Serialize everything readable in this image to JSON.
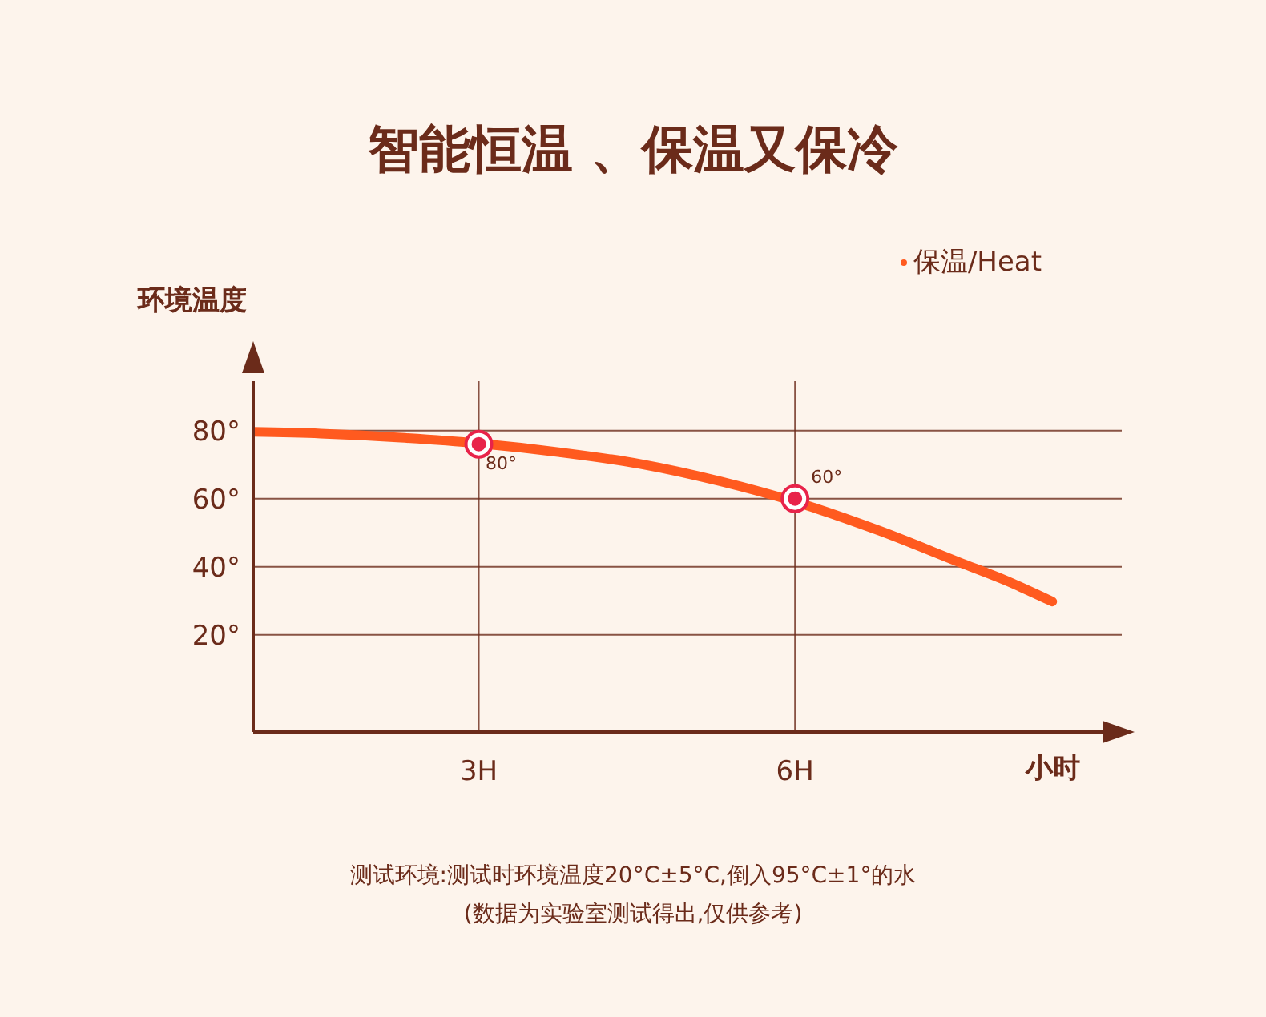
{
  "chart_data": {
    "type": "line",
    "title": "智能恒温 、保温又保冷",
    "ylabel": "环境温度",
    "xlabel": "小时",
    "series": [
      {
        "name": "保温/Heat",
        "color": "#ff5a1f",
        "marker": "none",
        "x": [
          0.86,
          1.5,
          2.26,
          3,
          3.77,
          4.53,
          5.29,
          6,
          6.8,
          7.56,
          8.02,
          8.44
        ],
        "values": [
          79.6,
          79.1,
          77.9,
          76.2,
          73.6,
          70.2,
          65.1,
          59.1,
          50.6,
          41.3,
          35.7,
          29.8
        ]
      },
      {
        "type": "scatter",
        "color": "#e8234a",
        "marker": "circle",
        "x": [
          3,
          6
        ],
        "values": [
          76,
          60
        ]
      }
    ],
    "xlim": [
      0.86,
      9.1
    ],
    "xticks": [
      {
        "value": 3,
        "label": "3H"
      },
      {
        "value": 6,
        "label": "6H"
      }
    ],
    "ylim": [
      -8.5,
      94.5
    ],
    "yticks": [
      {
        "value": 20,
        "label": "20°"
      },
      {
        "value": 40,
        "label": "40°"
      },
      {
        "value": 60,
        "label": "60°"
      },
      {
        "value": 80,
        "label": "80°"
      }
    ],
    "grid": true,
    "legend": "top right",
    "annotations": [
      {
        "text": "80°",
        "x": 3,
        "y": 76
      },
      {
        "text": "60°",
        "x": 6,
        "y": 60
      },
      "测试环境:测试时环境温度20°C±5°C,倒入95°C±1°的水",
      "(数据为实验室测试得出,仅供参考)"
    ]
  }
}
